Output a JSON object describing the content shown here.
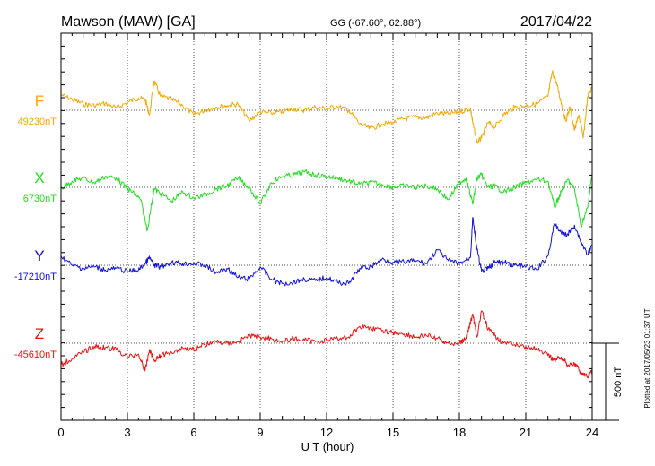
{
  "chart_data": {
    "type": "line",
    "title": "Mawson (MAW)  [GA]",
    "subtitle": "GG (-67.60°,  62.88°)",
    "date": "2017/04/22",
    "xlabel": "U T (hour)",
    "xlim": [
      0,
      24
    ],
    "x_ticks": [
      0,
      3,
      6,
      9,
      12,
      15,
      18,
      21,
      24
    ],
    "grid": true,
    "scale_bar": {
      "label": "500 nT",
      "value_nT": 500
    },
    "footer": "Plotted at 2017/05/23 01:37  UT",
    "series": [
      {
        "name": "F",
        "baseline_label": "49230nT",
        "baseline_nT": 49230,
        "color": "#f5a800",
        "x": [
          0,
          0.5,
          1,
          1.5,
          2,
          2.5,
          3,
          3.5,
          3.8,
          4,
          4.2,
          4.5,
          5,
          5.5,
          6,
          6.5,
          7,
          7.5,
          8,
          8.5,
          9,
          9.5,
          10,
          10.5,
          11,
          11.5,
          12,
          12.5,
          13,
          13.5,
          14,
          14.5,
          15,
          15.5,
          16,
          16.5,
          17,
          17.5,
          18,
          18.5,
          18.6,
          18.8,
          19,
          19.3,
          19.6,
          20,
          20.5,
          21,
          21.5,
          22,
          22.2,
          22.4,
          22.6,
          22.8,
          23,
          23.2,
          23.4,
          23.6,
          23.8,
          24
        ],
        "y": [
          49330,
          49300,
          49270,
          49260,
          49275,
          49245,
          49280,
          49310,
          49300,
          49200,
          49420,
          49320,
          49300,
          49260,
          49200,
          49230,
          49250,
          49260,
          49270,
          49160,
          49220,
          49210,
          49220,
          49240,
          49230,
          49250,
          49240,
          49255,
          49230,
          49140,
          49110,
          49140,
          49150,
          49175,
          49185,
          49180,
          49210,
          49205,
          49220,
          49240,
          49150,
          49020,
          49050,
          49150,
          49120,
          49200,
          49250,
          49260,
          49270,
          49320,
          49480,
          49400,
          49280,
          49160,
          49250,
          49100,
          49200,
          49050,
          49320,
          49380
        ]
      },
      {
        "name": "X",
        "baseline_label": "6730nT",
        "baseline_nT": 6730,
        "color": "#22dd22",
        "x": [
          0,
          0.5,
          1,
          1.5,
          2,
          2.5,
          3,
          3.3,
          3.6,
          3.9,
          4.2,
          4.5,
          5,
          5.5,
          6,
          6.5,
          7,
          7.5,
          8,
          8.5,
          9,
          9.5,
          10,
          10.5,
          11,
          11.5,
          12,
          12.5,
          13,
          13.5,
          14,
          14.5,
          15,
          15.5,
          16,
          16.5,
          17,
          17.5,
          18,
          18.3,
          18.6,
          18.8,
          19,
          19.3,
          19.6,
          20,
          20.5,
          21,
          21.5,
          22,
          22.3,
          22.6,
          22.9,
          23.2,
          23.5,
          23.8,
          24
        ],
        "y": [
          6720,
          6770,
          6790,
          6760,
          6800,
          6790,
          6720,
          6690,
          6650,
          6450,
          6720,
          6690,
          6640,
          6700,
          6660,
          6680,
          6720,
          6740,
          6790,
          6730,
          6620,
          6760,
          6800,
          6810,
          6830,
          6810,
          6800,
          6790,
          6770,
          6750,
          6760,
          6750,
          6730,
          6740,
          6730,
          6740,
          6720,
          6650,
          6760,
          6790,
          6620,
          6790,
          6810,
          6730,
          6740,
          6700,
          6730,
          6760,
          6780,
          6770,
          6600,
          6700,
          6780,
          6720,
          6480,
          6600,
          6820
        ]
      },
      {
        "name": "Y",
        "baseline_label": "-17210nT",
        "baseline_nT": -17210,
        "color": "#1010dd",
        "x": [
          0,
          0.5,
          1,
          1.5,
          2,
          2.5,
          3,
          3.5,
          3.8,
          4,
          4.2,
          4.5,
          5,
          5.5,
          6,
          6.5,
          7,
          7.5,
          8,
          8.5,
          9,
          9.5,
          10,
          10.5,
          11,
          11.5,
          12,
          12.5,
          13,
          13.5,
          14,
          14.5,
          15,
          15.5,
          16,
          16.5,
          17,
          17.5,
          18,
          18.5,
          18.6,
          18.8,
          19,
          19.3,
          19.6,
          20,
          20.5,
          21,
          21.5,
          22,
          22.3,
          22.6,
          22.9,
          23.2,
          23.5,
          23.8,
          24
        ],
        "y": [
          -17150,
          -17210,
          -17230,
          -17220,
          -17240,
          -17230,
          -17250,
          -17240,
          -17200,
          -17160,
          -17210,
          -17220,
          -17190,
          -17200,
          -17200,
          -17210,
          -17260,
          -17230,
          -17290,
          -17300,
          -17220,
          -17300,
          -17330,
          -17320,
          -17300,
          -17310,
          -17290,
          -17320,
          -17330,
          -17230,
          -17220,
          -17170,
          -17190,
          -17190,
          -17180,
          -17200,
          -17110,
          -17180,
          -17200,
          -17160,
          -16900,
          -17110,
          -17250,
          -17230,
          -17190,
          -17190,
          -17210,
          -17220,
          -17240,
          -17150,
          -16940,
          -17000,
          -17010,
          -16950,
          -17060,
          -17140,
          -17080
        ]
      },
      {
        "name": "Z",
        "baseline_label": "-45610nT",
        "baseline_nT": -45610,
        "color": "#ee1111",
        "x": [
          0,
          0.5,
          1,
          1.5,
          2,
          2.5,
          3,
          3.5,
          3.8,
          4,
          4.2,
          4.5,
          5,
          5.5,
          6,
          6.5,
          7,
          7.5,
          8,
          8.5,
          9,
          9.5,
          10,
          10.5,
          11,
          11.5,
          12,
          12.5,
          13,
          13.5,
          14,
          14.5,
          15,
          15.5,
          16,
          16.5,
          17,
          17.5,
          18,
          18.3,
          18.6,
          18.8,
          19,
          19.3,
          19.6,
          20,
          20.5,
          21,
          21.5,
          22,
          22.3,
          22.6,
          22.9,
          23.2,
          23.5,
          23.8,
          24
        ],
        "y": [
          -45750,
          -45710,
          -45670,
          -45630,
          -45640,
          -45650,
          -45700,
          -45680,
          -45790,
          -45650,
          -45720,
          -45690,
          -45670,
          -45640,
          -45650,
          -45620,
          -45600,
          -45610,
          -45600,
          -45560,
          -45570,
          -45580,
          -45600,
          -45580,
          -45590,
          -45600,
          -45590,
          -45580,
          -45570,
          -45500,
          -45510,
          -45530,
          -45540,
          -45550,
          -45570,
          -45560,
          -45580,
          -45610,
          -45610,
          -45580,
          -45420,
          -45570,
          -45400,
          -45520,
          -45560,
          -45610,
          -45620,
          -45630,
          -45650,
          -45690,
          -45720,
          -45700,
          -45750,
          -45740,
          -45800,
          -45830,
          -45790
        ]
      }
    ]
  }
}
